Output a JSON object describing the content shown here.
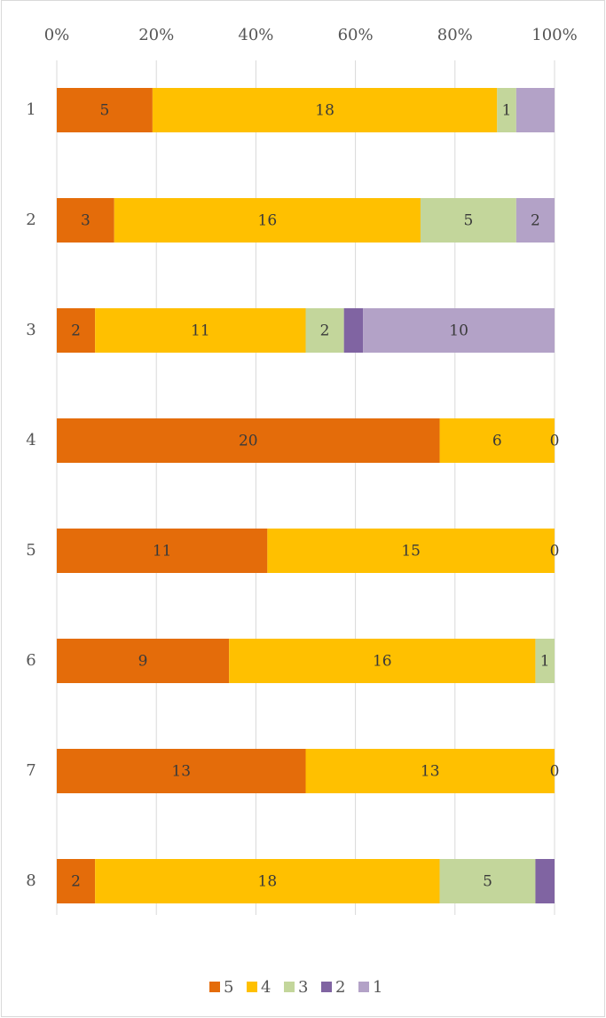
{
  "chart_data": {
    "type": "bar",
    "orientation": "horizontal",
    "stacking": "percent",
    "categories": [
      "1",
      "2",
      "3",
      "4",
      "5",
      "6",
      "7",
      "8"
    ],
    "series": [
      {
        "name": "5",
        "color": "#e46c0a",
        "values": [
          5,
          3,
          2,
          20,
          11,
          9,
          13,
          2
        ]
      },
      {
        "name": "4",
        "color": "#ffc000",
        "values": [
          18,
          16,
          11,
          6,
          15,
          16,
          13,
          18
        ]
      },
      {
        "name": "3",
        "color": "#c3d69b",
        "values": [
          1,
          5,
          2,
          0,
          0,
          1,
          0,
          5
        ],
        "value_labels": [
          "1",
          "5",
          "2",
          "0",
          "0",
          "1",
          "0",
          "5"
        ]
      },
      {
        "name": "2",
        "color": "#8064a2",
        "values": [
          0,
          0,
          1,
          0,
          0,
          0,
          0,
          1
        ],
        "value_labels": [
          null,
          null,
          null,
          null,
          null,
          null,
          null,
          null
        ]
      },
      {
        "name": "1",
        "color": "#b3a2c7",
        "values": [
          2,
          2,
          10,
          0,
          0,
          0,
          0,
          0
        ],
        "value_labels": [
          null,
          "2",
          "10",
          null,
          null,
          null,
          null,
          null
        ]
      }
    ],
    "xlim": [
      0,
      100
    ],
    "xticks": [
      {
        "value": 0,
        "label": "0%"
      },
      {
        "value": 20,
        "label": "20%"
      },
      {
        "value": 40,
        "label": "40%"
      },
      {
        "value": 60,
        "label": "60%"
      },
      {
        "value": 80,
        "label": "80%"
      },
      {
        "value": 100,
        "label": "100%"
      }
    ],
    "grid": true,
    "legend": "bottom"
  }
}
